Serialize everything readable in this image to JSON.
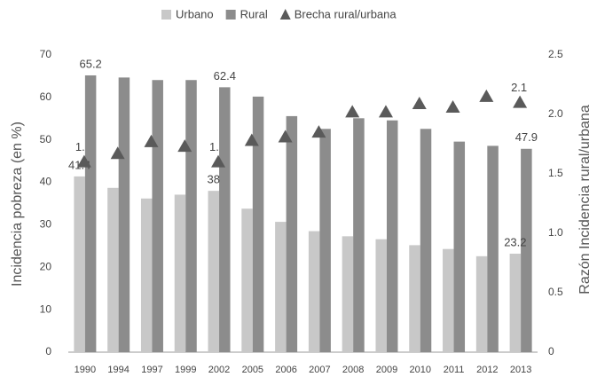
{
  "chart_data": {
    "type": "bar-line",
    "y_label": "Incidencia pobreza (en %)",
    "y2_label": "Razón Incidencia rural/urbana",
    "categories": [
      "1990",
      "1994",
      "1997",
      "1999",
      "2002",
      "2005",
      "2006",
      "2007",
      "2008",
      "2009",
      "2010",
      "2011",
      "2012",
      "2013"
    ],
    "series": [
      {
        "name": "Urbano",
        "color": "#c8c8c8",
        "kind": "bar",
        "values": [
          41.4,
          38.7,
          36.2,
          37.1,
          38,
          33.8,
          30.7,
          28.5,
          27.3,
          26.6,
          25.2,
          24.3,
          22.6,
          23.2
        ],
        "value_labels": [
          "41.4",
          null,
          null,
          null,
          "38",
          null,
          null,
          null,
          null,
          null,
          null,
          null,
          null,
          "23.2"
        ]
      },
      {
        "name": "Rural",
        "color": "#8c8c8c",
        "kind": "bar",
        "values": [
          65.2,
          64.7,
          64.1,
          64.1,
          62.4,
          60.2,
          55.6,
          52.6,
          55.1,
          54.6,
          52.6,
          49.6,
          48.6,
          47.9
        ],
        "value_labels": [
          "65.2",
          null,
          null,
          null,
          "62.4",
          null,
          null,
          null,
          null,
          null,
          null,
          null,
          null,
          "47.9"
        ]
      },
      {
        "name": "Brecha rural/urbana",
        "color": "#5a5a5a",
        "kind": "triangle",
        "axis": "y2",
        "values": [
          1.6,
          1.67,
          1.77,
          1.73,
          1.6,
          1.78,
          1.81,
          1.85,
          2.02,
          2.02,
          2.09,
          2.06,
          2.15,
          2.1
        ],
        "value_labels": [
          "1.6",
          null,
          null,
          null,
          "1.6",
          null,
          null,
          null,
          null,
          null,
          null,
          null,
          null,
          "2.1"
        ]
      }
    ],
    "ylim": [
      0,
      70
    ],
    "yticks": [
      0,
      10,
      20,
      30,
      40,
      50,
      60,
      70
    ],
    "y2lim": [
      0,
      2.5
    ],
    "y2ticks": [
      0,
      0.5,
      {
        "value": 1,
        "label": "1.0"
      },
      1.5,
      {
        "value": 2,
        "label": "2.0"
      },
      2.5
    ],
    "legend": "top",
    "grid": false
  }
}
